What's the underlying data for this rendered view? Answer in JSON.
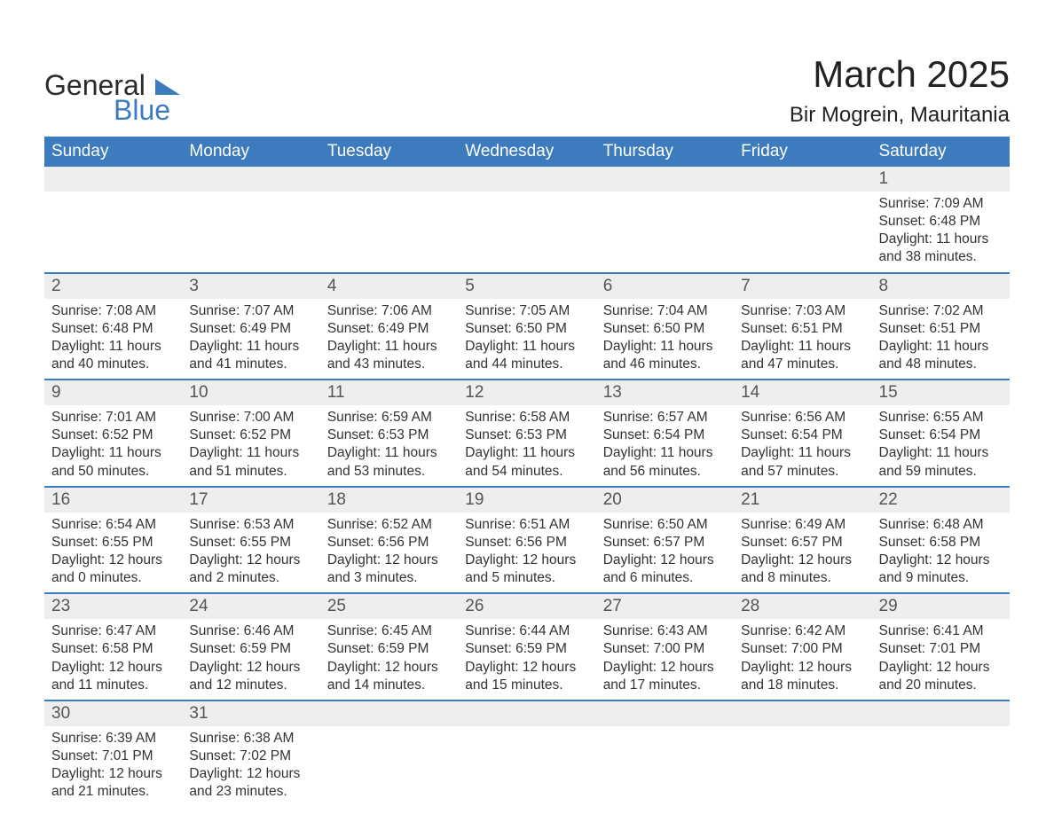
{
  "brand": {
    "name_a": "General",
    "name_b": "Blue",
    "tri_color": "#3d7bbf"
  },
  "title": "March 2025",
  "location": "Bir Mogrein, Mauritania",
  "colors": {
    "header_bg": "#3d7bbf",
    "header_fg": "#ffffff",
    "daynum_bg": "#eeeeee",
    "row_border": "#3d7bbf",
    "text": "#333333",
    "page_bg": "#ffffff"
  },
  "typography": {
    "title_size_pt": 32,
    "location_size_pt": 18,
    "header_size_pt": 14,
    "body_size_pt": 12
  },
  "calendar": {
    "type": "table",
    "columns": [
      "Sunday",
      "Monday",
      "Tuesday",
      "Wednesday",
      "Thursday",
      "Friday",
      "Saturday"
    ],
    "weeks": [
      [
        null,
        null,
        null,
        null,
        null,
        null,
        {
          "n": "1",
          "sr": "Sunrise: 7:09 AM",
          "ss": "Sunset: 6:48 PM",
          "d1": "Daylight: 11 hours",
          "d2": "and 38 minutes."
        }
      ],
      [
        {
          "n": "2",
          "sr": "Sunrise: 7:08 AM",
          "ss": "Sunset: 6:48 PM",
          "d1": "Daylight: 11 hours",
          "d2": "and 40 minutes."
        },
        {
          "n": "3",
          "sr": "Sunrise: 7:07 AM",
          "ss": "Sunset: 6:49 PM",
          "d1": "Daylight: 11 hours",
          "d2": "and 41 minutes."
        },
        {
          "n": "4",
          "sr": "Sunrise: 7:06 AM",
          "ss": "Sunset: 6:49 PM",
          "d1": "Daylight: 11 hours",
          "d2": "and 43 minutes."
        },
        {
          "n": "5",
          "sr": "Sunrise: 7:05 AM",
          "ss": "Sunset: 6:50 PM",
          "d1": "Daylight: 11 hours",
          "d2": "and 44 minutes."
        },
        {
          "n": "6",
          "sr": "Sunrise: 7:04 AM",
          "ss": "Sunset: 6:50 PM",
          "d1": "Daylight: 11 hours",
          "d2": "and 46 minutes."
        },
        {
          "n": "7",
          "sr": "Sunrise: 7:03 AM",
          "ss": "Sunset: 6:51 PM",
          "d1": "Daylight: 11 hours",
          "d2": "and 47 minutes."
        },
        {
          "n": "8",
          "sr": "Sunrise: 7:02 AM",
          "ss": "Sunset: 6:51 PM",
          "d1": "Daylight: 11 hours",
          "d2": "and 48 minutes."
        }
      ],
      [
        {
          "n": "9",
          "sr": "Sunrise: 7:01 AM",
          "ss": "Sunset: 6:52 PM",
          "d1": "Daylight: 11 hours",
          "d2": "and 50 minutes."
        },
        {
          "n": "10",
          "sr": "Sunrise: 7:00 AM",
          "ss": "Sunset: 6:52 PM",
          "d1": "Daylight: 11 hours",
          "d2": "and 51 minutes."
        },
        {
          "n": "11",
          "sr": "Sunrise: 6:59 AM",
          "ss": "Sunset: 6:53 PM",
          "d1": "Daylight: 11 hours",
          "d2": "and 53 minutes."
        },
        {
          "n": "12",
          "sr": "Sunrise: 6:58 AM",
          "ss": "Sunset: 6:53 PM",
          "d1": "Daylight: 11 hours",
          "d2": "and 54 minutes."
        },
        {
          "n": "13",
          "sr": "Sunrise: 6:57 AM",
          "ss": "Sunset: 6:54 PM",
          "d1": "Daylight: 11 hours",
          "d2": "and 56 minutes."
        },
        {
          "n": "14",
          "sr": "Sunrise: 6:56 AM",
          "ss": "Sunset: 6:54 PM",
          "d1": "Daylight: 11 hours",
          "d2": "and 57 minutes."
        },
        {
          "n": "15",
          "sr": "Sunrise: 6:55 AM",
          "ss": "Sunset: 6:54 PM",
          "d1": "Daylight: 11 hours",
          "d2": "and 59 minutes."
        }
      ],
      [
        {
          "n": "16",
          "sr": "Sunrise: 6:54 AM",
          "ss": "Sunset: 6:55 PM",
          "d1": "Daylight: 12 hours",
          "d2": "and 0 minutes."
        },
        {
          "n": "17",
          "sr": "Sunrise: 6:53 AM",
          "ss": "Sunset: 6:55 PM",
          "d1": "Daylight: 12 hours",
          "d2": "and 2 minutes."
        },
        {
          "n": "18",
          "sr": "Sunrise: 6:52 AM",
          "ss": "Sunset: 6:56 PM",
          "d1": "Daylight: 12 hours",
          "d2": "and 3 minutes."
        },
        {
          "n": "19",
          "sr": "Sunrise: 6:51 AM",
          "ss": "Sunset: 6:56 PM",
          "d1": "Daylight: 12 hours",
          "d2": "and 5 minutes."
        },
        {
          "n": "20",
          "sr": "Sunrise: 6:50 AM",
          "ss": "Sunset: 6:57 PM",
          "d1": "Daylight: 12 hours",
          "d2": "and 6 minutes."
        },
        {
          "n": "21",
          "sr": "Sunrise: 6:49 AM",
          "ss": "Sunset: 6:57 PM",
          "d1": "Daylight: 12 hours",
          "d2": "and 8 minutes."
        },
        {
          "n": "22",
          "sr": "Sunrise: 6:48 AM",
          "ss": "Sunset: 6:58 PM",
          "d1": "Daylight: 12 hours",
          "d2": "and 9 minutes."
        }
      ],
      [
        {
          "n": "23",
          "sr": "Sunrise: 6:47 AM",
          "ss": "Sunset: 6:58 PM",
          "d1": "Daylight: 12 hours",
          "d2": "and 11 minutes."
        },
        {
          "n": "24",
          "sr": "Sunrise: 6:46 AM",
          "ss": "Sunset: 6:59 PM",
          "d1": "Daylight: 12 hours",
          "d2": "and 12 minutes."
        },
        {
          "n": "25",
          "sr": "Sunrise: 6:45 AM",
          "ss": "Sunset: 6:59 PM",
          "d1": "Daylight: 12 hours",
          "d2": "and 14 minutes."
        },
        {
          "n": "26",
          "sr": "Sunrise: 6:44 AM",
          "ss": "Sunset: 6:59 PM",
          "d1": "Daylight: 12 hours",
          "d2": "and 15 minutes."
        },
        {
          "n": "27",
          "sr": "Sunrise: 6:43 AM",
          "ss": "Sunset: 7:00 PM",
          "d1": "Daylight: 12 hours",
          "d2": "and 17 minutes."
        },
        {
          "n": "28",
          "sr": "Sunrise: 6:42 AM",
          "ss": "Sunset: 7:00 PM",
          "d1": "Daylight: 12 hours",
          "d2": "and 18 minutes."
        },
        {
          "n": "29",
          "sr": "Sunrise: 6:41 AM",
          "ss": "Sunset: 7:01 PM",
          "d1": "Daylight: 12 hours",
          "d2": "and 20 minutes."
        }
      ],
      [
        {
          "n": "30",
          "sr": "Sunrise: 6:39 AM",
          "ss": "Sunset: 7:01 PM",
          "d1": "Daylight: 12 hours",
          "d2": "and 21 minutes."
        },
        {
          "n": "31",
          "sr": "Sunrise: 6:38 AM",
          "ss": "Sunset: 7:02 PM",
          "d1": "Daylight: 12 hours",
          "d2": "and 23 minutes."
        },
        null,
        null,
        null,
        null,
        null
      ]
    ]
  }
}
